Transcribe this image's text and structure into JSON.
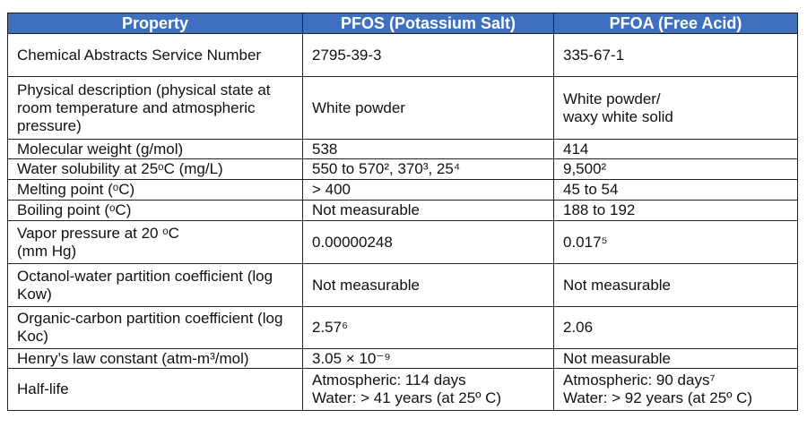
{
  "table": {
    "header": [
      "Property",
      "PFOS (Potassium Salt)",
      "PFOA (Free Acid)"
    ],
    "rows": [
      [
        "Chemical Abstracts Service Number",
        "2795-39-3",
        "335-67-1"
      ],
      [
        "Physical description (physical state at room temperature and atmospheric pressure)",
        "White powder",
        "White powder/\nwaxy white solid"
      ],
      [
        "Molecular weight (g/mol)",
        "538",
        "414"
      ],
      [
        "Water solubility at 25ᵒC (mg/L)",
        "550 to 570², 370³, 25⁴",
        "9,500²"
      ],
      [
        "Melting point (ᵒC)",
        "> 400",
        "45 to 54"
      ],
      [
        "Boiling point (ᵒC)",
        "Not measurable",
        "188 to 192"
      ],
      [
        "Vapor pressure at 20 ᵒC\n(mm Hg)",
        "0.00000248",
        "0.017⁵"
      ],
      [
        "Octanol-water partition coefficient (log Kow)",
        "Not measurable",
        "Not measurable"
      ],
      [
        "Organic-carbon partition coefficient (log Koc)",
        "2.57⁶",
        "2.06"
      ],
      [
        "Henry’s law constant (atm-m³/mol)",
        "3.05 × 10⁻⁹",
        "Not measurable"
      ],
      [
        "Half-life",
        "Atmospheric: 114 days\nWater: > 41 years (at 25º C)",
        "Atmospheric: 90 days⁷\nWater: > 92 years (at 25º C)"
      ]
    ]
  }
}
